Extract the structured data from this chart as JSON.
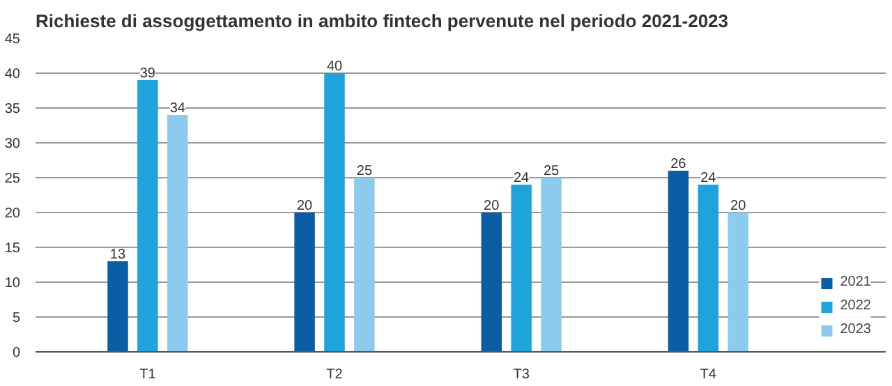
{
  "chart_data": {
    "type": "bar",
    "title": "Richieste di assoggettamento in ambito fintech pervenute nel periodo 2021-2023",
    "categories": [
      "T1",
      "T2",
      "T3",
      "T4"
    ],
    "series": [
      {
        "name": "2021",
        "color": "#0b5ea3",
        "values": [
          13,
          20,
          20,
          26
        ]
      },
      {
        "name": "2022",
        "color": "#1fa3dc",
        "values": [
          39,
          40,
          24,
          24
        ]
      },
      {
        "name": "2023",
        "color": "#8ccbee",
        "values": [
          34,
          25,
          25,
          20
        ]
      }
    ],
    "ylim": [
      0,
      45
    ],
    "yticks": [
      0,
      5,
      10,
      15,
      20,
      25,
      30,
      35,
      40,
      45
    ],
    "grid": "y",
    "legend": "bottom right",
    "data_labels": true
  }
}
